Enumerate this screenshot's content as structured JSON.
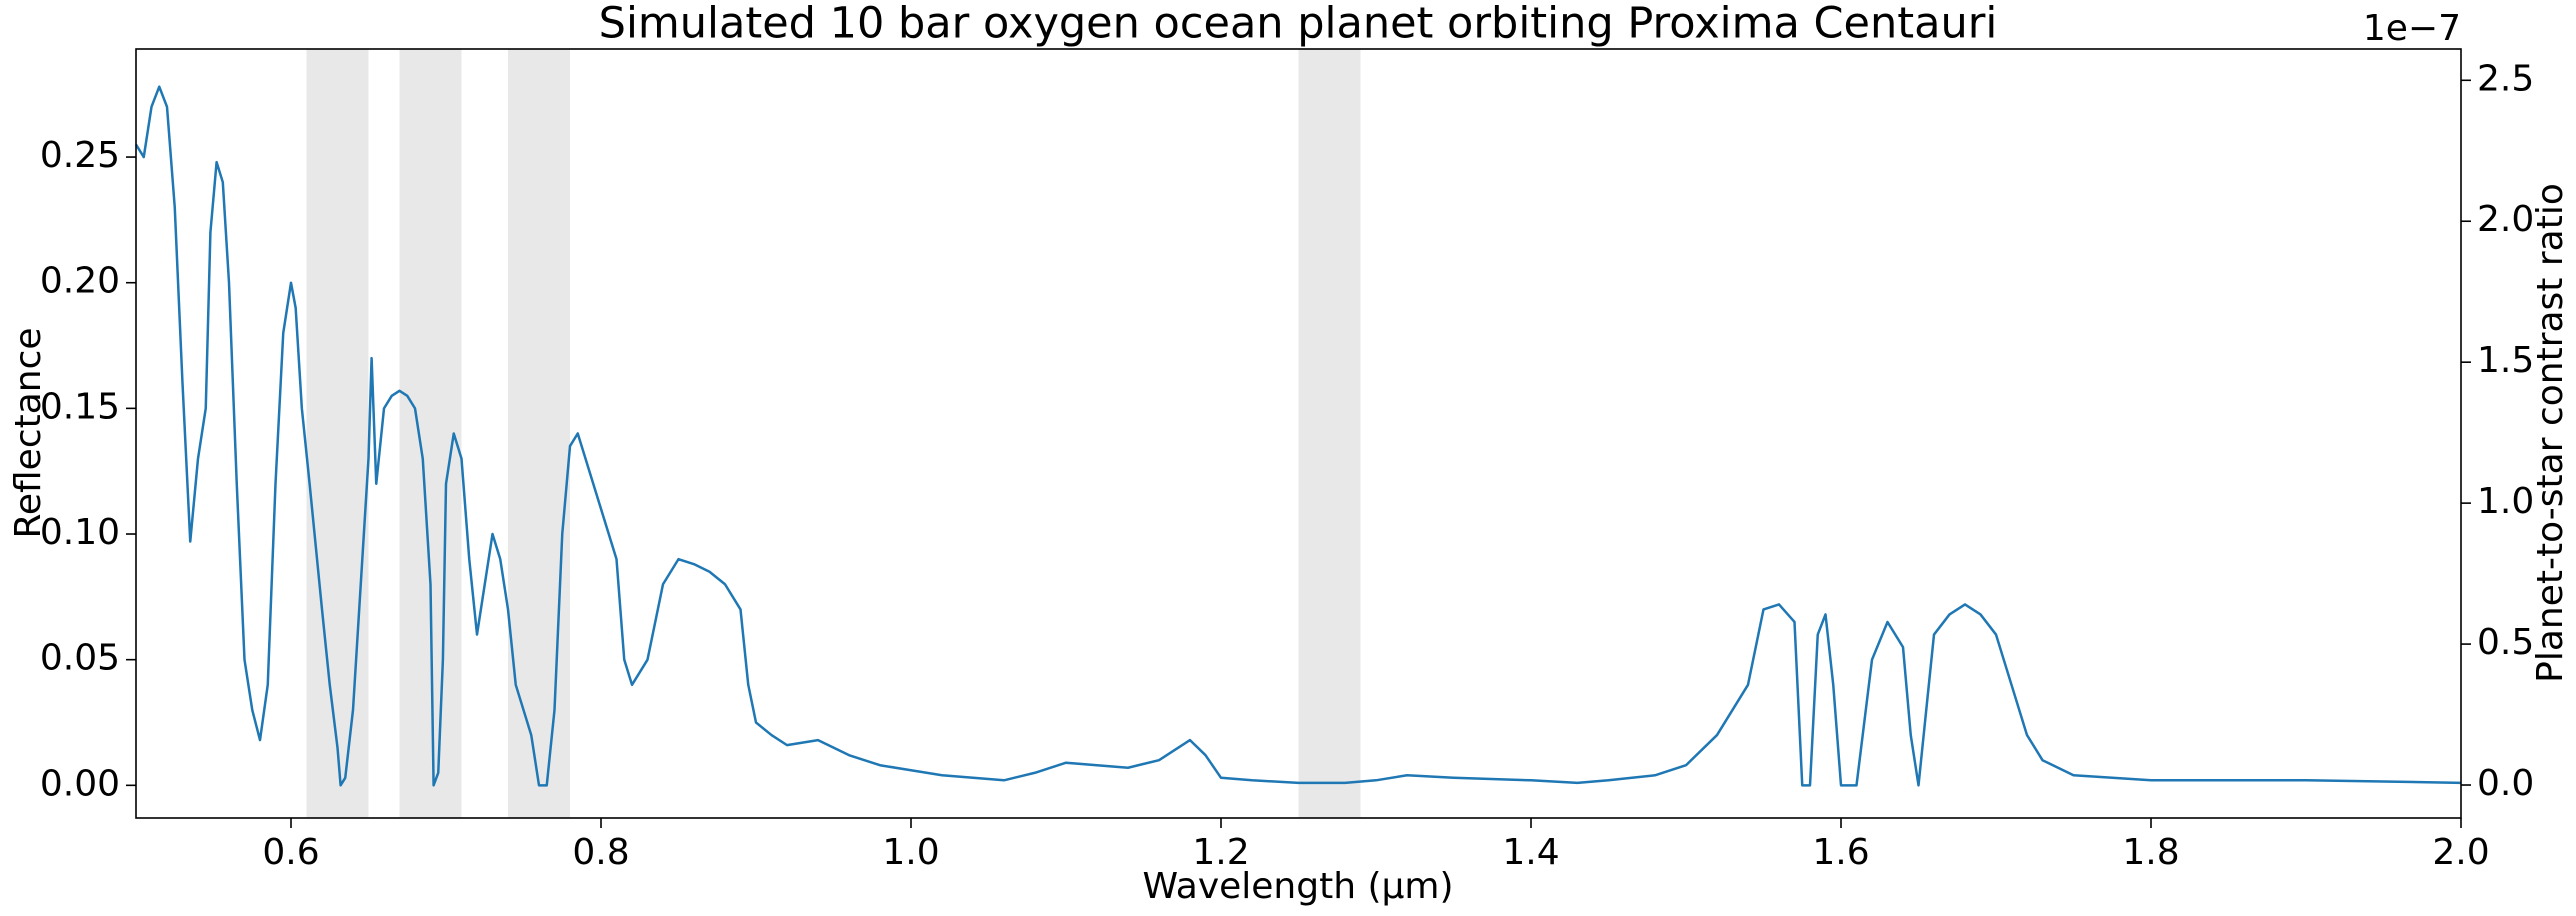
{
  "chart_data": {
    "type": "line",
    "title": "Simulated 10 bar oxygen ocean planet orbiting Proxima Centauri",
    "xlabel": "Wavelength (μm)",
    "ylabel": "Reflectance",
    "y2label": "Planet-to-star contrast ratio",
    "y2_offset_label": "1e−7",
    "color": "#1f77b4",
    "shade_color": "#e8e8e8",
    "shaded_regions": [
      [
        0.61,
        0.65
      ],
      [
        0.67,
        0.71
      ],
      [
        0.74,
        0.78
      ],
      [
        1.25,
        1.29
      ]
    ],
    "x": [
      0.5,
      0.505,
      0.51,
      0.515,
      0.52,
      0.525,
      0.53,
      0.535,
      0.54,
      0.545,
      0.548,
      0.552,
      0.556,
      0.56,
      0.565,
      0.57,
      0.575,
      0.58,
      0.585,
      0.59,
      0.595,
      0.6,
      0.603,
      0.607,
      0.612,
      0.62,
      0.625,
      0.63,
      0.632,
      0.635,
      0.64,
      0.645,
      0.65,
      0.652,
      0.655,
      0.66,
      0.665,
      0.67,
      0.675,
      0.68,
      0.685,
      0.69,
      0.692,
      0.695,
      0.698,
      0.7,
      0.705,
      0.71,
      0.715,
      0.72,
      0.725,
      0.73,
      0.735,
      0.74,
      0.745,
      0.75,
      0.755,
      0.76,
      0.765,
      0.77,
      0.775,
      0.78,
      0.785,
      0.79,
      0.795,
      0.8,
      0.805,
      0.81,
      0.815,
      0.82,
      0.83,
      0.84,
      0.85,
      0.86,
      0.87,
      0.88,
      0.89,
      0.895,
      0.9,
      0.91,
      0.92,
      0.94,
      0.96,
      0.98,
      1.0,
      1.02,
      1.04,
      1.06,
      1.08,
      1.1,
      1.12,
      1.14,
      1.16,
      1.18,
      1.19,
      1.2,
      1.22,
      1.25,
      1.28,
      1.3,
      1.32,
      1.35,
      1.4,
      1.43,
      1.45,
      1.48,
      1.5,
      1.52,
      1.54,
      1.55,
      1.56,
      1.57,
      1.575,
      1.58,
      1.585,
      1.59,
      1.595,
      1.6,
      1.61,
      1.62,
      1.63,
      1.64,
      1.645,
      1.65,
      1.655,
      1.66,
      1.67,
      1.68,
      1.69,
      1.7,
      1.71,
      1.72,
      1.73,
      1.75,
      1.8,
      1.9,
      2.0
    ],
    "values": [
      0.255,
      0.25,
      0.27,
      0.278,
      0.27,
      0.23,
      0.16,
      0.097,
      0.13,
      0.15,
      0.22,
      0.248,
      0.24,
      0.2,
      0.12,
      0.05,
      0.03,
      0.018,
      0.04,
      0.12,
      0.18,
      0.2,
      0.19,
      0.15,
      0.12,
      0.07,
      0.04,
      0.015,
      0.0,
      0.003,
      0.03,
      0.08,
      0.13,
      0.17,
      0.12,
      0.15,
      0.155,
      0.157,
      0.155,
      0.15,
      0.13,
      0.08,
      0.0,
      0.005,
      0.05,
      0.12,
      0.14,
      0.13,
      0.09,
      0.06,
      0.08,
      0.1,
      0.09,
      0.07,
      0.04,
      0.03,
      0.02,
      0.0,
      0.0,
      0.03,
      0.1,
      0.135,
      0.14,
      0.13,
      0.12,
      0.11,
      0.1,
      0.09,
      0.05,
      0.04,
      0.05,
      0.08,
      0.09,
      0.088,
      0.085,
      0.08,
      0.07,
      0.04,
      0.025,
      0.02,
      0.016,
      0.018,
      0.012,
      0.008,
      0.006,
      0.004,
      0.003,
      0.002,
      0.005,
      0.009,
      0.008,
      0.007,
      0.01,
      0.018,
      0.012,
      0.003,
      0.002,
      0.001,
      0.001,
      0.002,
      0.004,
      0.003,
      0.002,
      0.001,
      0.002,
      0.004,
      0.008,
      0.02,
      0.04,
      0.07,
      0.072,
      0.065,
      0.0,
      0.0,
      0.06,
      0.068,
      0.04,
      0.0,
      0.0,
      0.05,
      0.065,
      0.055,
      0.02,
      0.0,
      0.03,
      0.06,
      0.068,
      0.072,
      0.068,
      0.06,
      0.04,
      0.02,
      0.01,
      0.004,
      0.002,
      0.002,
      0.001
    ],
    "xlim": [
      0.5,
      2.0
    ],
    "xticks": [
      0.6,
      0.8,
      {
        "value": 1,
        "label": "1.0"
      },
      1.2,
      1.4,
      1.6,
      1.8,
      {
        "value": 2,
        "label": "2.0"
      }
    ],
    "ylim": [
      -0.013,
      0.293
    ],
    "yticks": [
      {
        "value": 0,
        "label": "0.00"
      },
      0.05,
      {
        "value": 0.1,
        "label": "0.10"
      },
      0.15,
      {
        "value": 0.2,
        "label": "0.20"
      },
      0.25
    ],
    "y2lim": [
      -0.117,
      2.611
    ],
    "y2ticks": [
      {
        "value": 0,
        "label": "0.0"
      },
      0.5,
      {
        "value": 1,
        "label": "1.0"
      },
      1.5,
      {
        "value": 2,
        "label": "2.0"
      },
      2.5
    ]
  }
}
